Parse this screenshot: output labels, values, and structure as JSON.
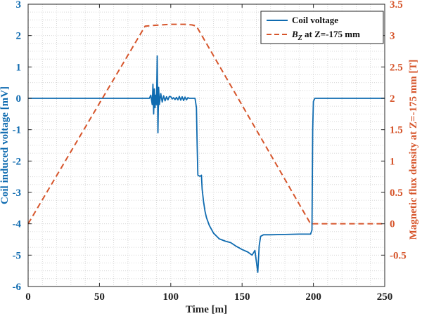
{
  "chart_data": {
    "type": "line",
    "xlabel": "Time [m]",
    "ylabel_left": "Coil induced voltage [mV]",
    "ylabel_right": "Magnetic flux density at Z=-175 mm [T]",
    "xlim": [
      0,
      250
    ],
    "ylim_left": [
      -6,
      3
    ],
    "ylim_right": [
      -1,
      3.5
    ],
    "x_ticks": [
      0,
      50,
      100,
      150,
      200,
      250
    ],
    "y_ticks_left": [
      -6,
      -5,
      -4,
      -3,
      -2,
      -1,
      0,
      1,
      2,
      3
    ],
    "y_ticks_right": [
      -0.5,
      0,
      0.5,
      1,
      1.5,
      2,
      2.5,
      3,
      3.5
    ],
    "grid": true,
    "grid_style": "dotted-minor",
    "legend_position": "top-right",
    "colors": {
      "voltage": "#0f6bb0",
      "bz": "#d6552b",
      "grid": "#d0d0d0"
    },
    "series": [
      {
        "name": "Coil voltage",
        "axis": "left",
        "style": "solid",
        "x": [
          0,
          85,
          86,
          87,
          87.5,
          88,
          88.5,
          89,
          89.5,
          90,
          90.5,
          91,
          91.5,
          92,
          93,
          94,
          95,
          96,
          97,
          98,
          99,
          100,
          101,
          102,
          103,
          104,
          105,
          106,
          107,
          108,
          109,
          110,
          111,
          112,
          113,
          115,
          117,
          118,
          118.5,
          119,
          120,
          121,
          121.5,
          122,
          123,
          124,
          125,
          127,
          130,
          134,
          138,
          142,
          146,
          150,
          154,
          157,
          159,
          160,
          161,
          162,
          163,
          165,
          170,
          180,
          190,
          198,
          199,
          199.5,
          200,
          201,
          203,
          210,
          250
        ],
        "y": [
          0,
          0,
          0.1,
          -0.2,
          0.45,
          -0.5,
          0.3,
          -0.3,
          0.1,
          -0.2,
          1.35,
          -1.1,
          0.35,
          -0.2,
          0.15,
          -0.12,
          0.08,
          -0.08,
          0.05,
          -0.05,
          0.06,
          0.05,
          -0.02,
          0.02,
          -0.04,
          0.03,
          -0.05,
          0.06,
          -0.06,
          0.05,
          -0.07,
          0.04,
          -0.05,
          0.02,
          0,
          0,
          0,
          -0.3,
          -1.5,
          -2.45,
          -2.48,
          -2.48,
          -2.45,
          -2.9,
          -3.3,
          -3.6,
          -3.8,
          -4.05,
          -4.3,
          -4.48,
          -4.55,
          -4.6,
          -4.72,
          -4.82,
          -4.9,
          -5.0,
          -4.85,
          -5.2,
          -5.55,
          -4.7,
          -4.4,
          -4.35,
          -4.35,
          -4.34,
          -4.33,
          -4.33,
          -4.2,
          -1.0,
          -0.1,
          0,
          0,
          0,
          0
        ]
      },
      {
        "name": "B_Z at Z=-175 mm",
        "axis": "right",
        "style": "dashed",
        "x": [
          0,
          82,
          87,
          100,
          110,
          115,
          118,
          198,
          200,
          250
        ],
        "y": [
          0,
          3.15,
          3.16,
          3.18,
          3.18,
          3.17,
          3.15,
          0,
          0,
          0
        ]
      }
    ]
  },
  "legend": {
    "entries": [
      {
        "label": "Coil voltage",
        "style": "solid"
      },
      {
        "label_main": "B",
        "label_sub": "Z",
        "label_rest": " at Z=-175 mm",
        "style": "dashed"
      }
    ]
  }
}
